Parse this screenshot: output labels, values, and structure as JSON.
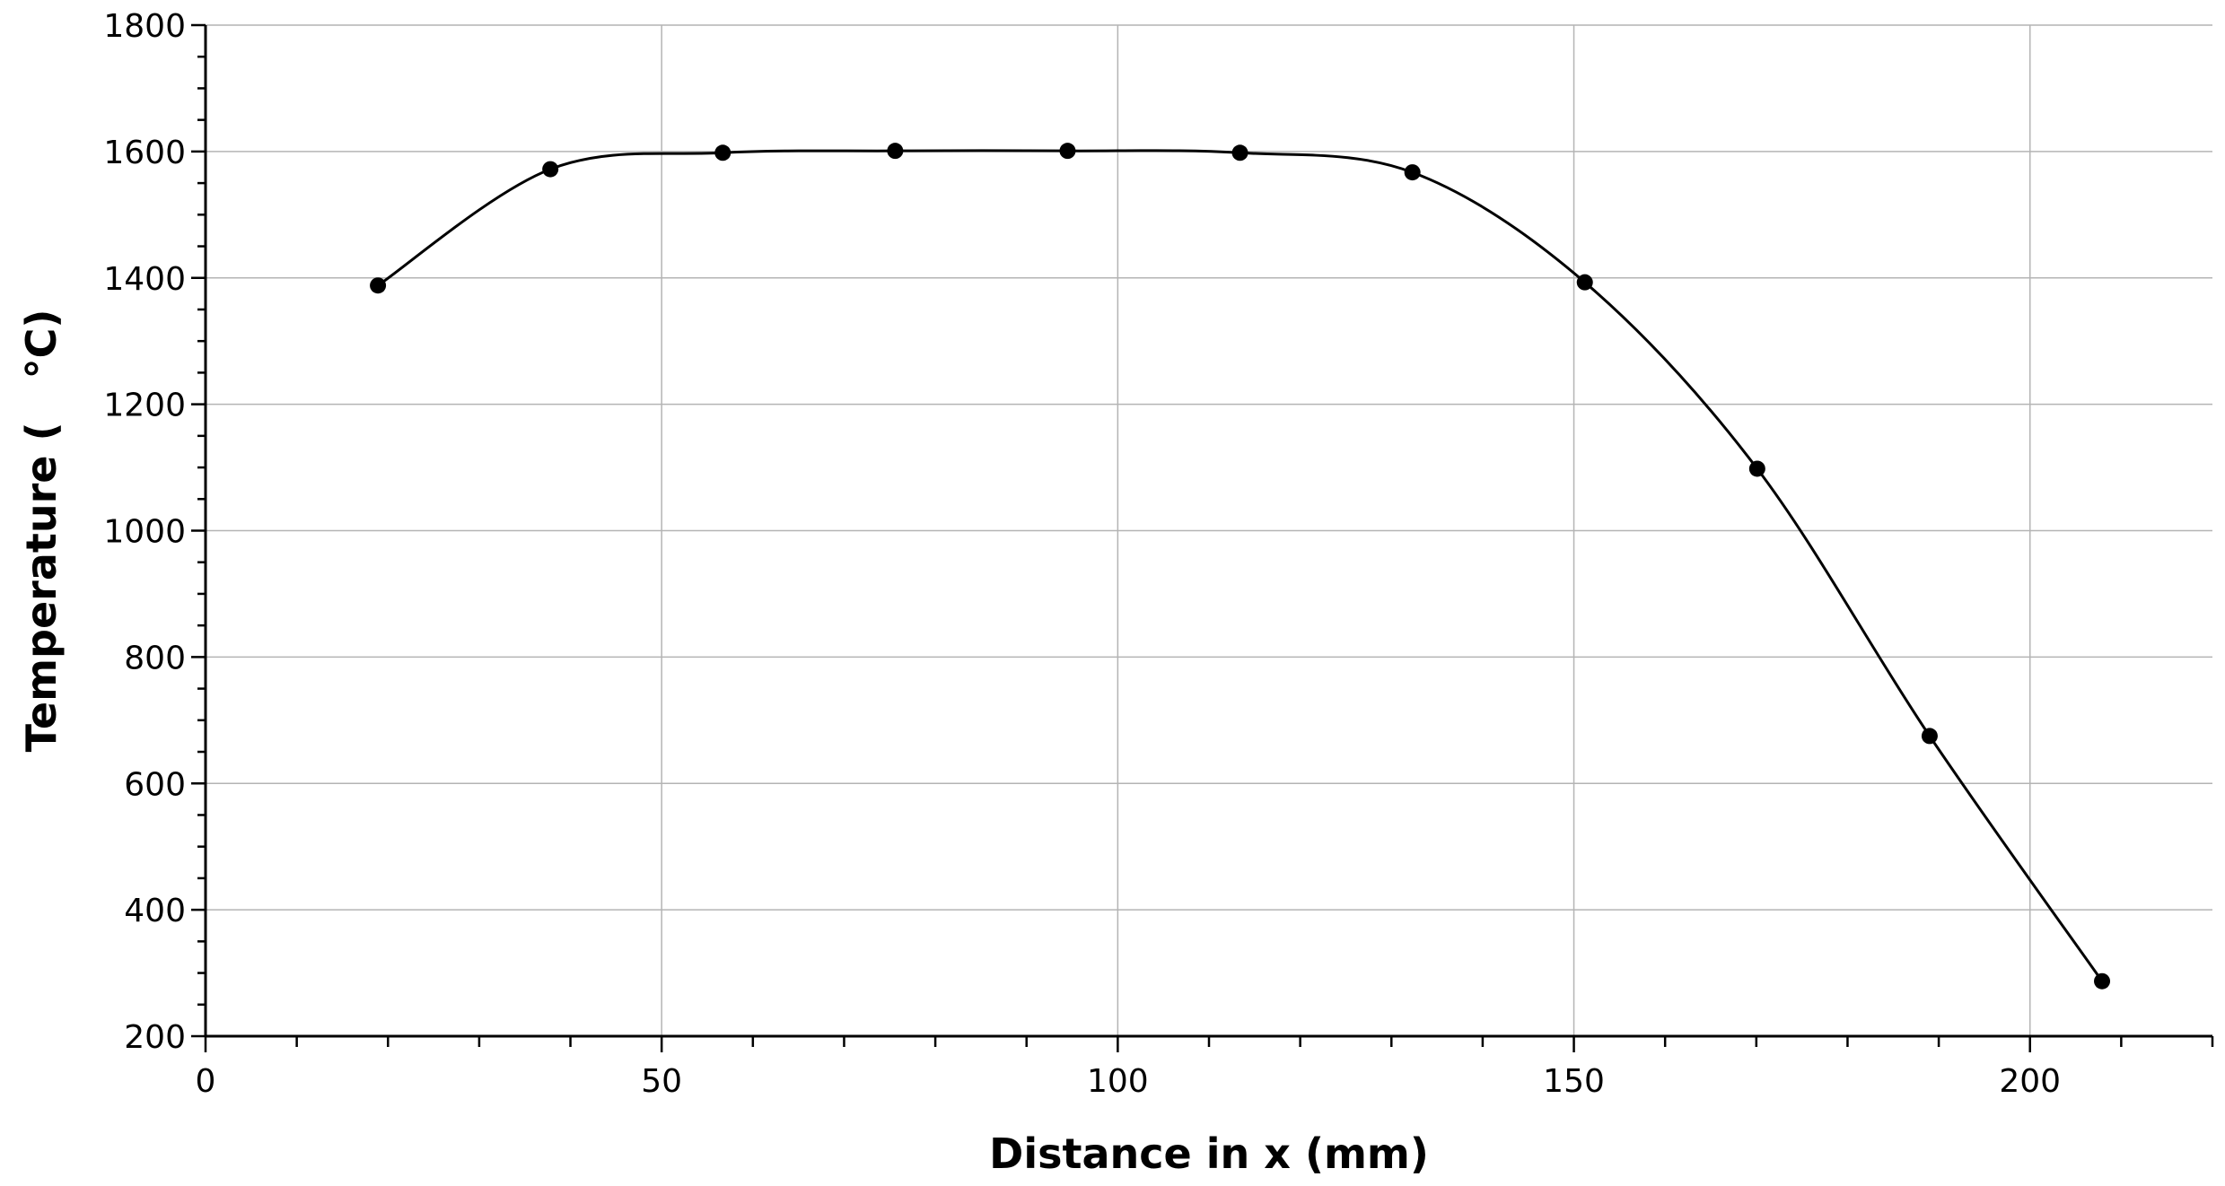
{
  "chart_data": {
    "type": "scatter",
    "xlabel": "Distance in x (mm)",
    "ylabel": "Temperature (   °C)",
    "xlim": [
      0,
      220
    ],
    "ylim": [
      200,
      1800
    ],
    "x_ticks": [
      "0",
      "50",
      "100",
      "150",
      "200"
    ],
    "y_ticks": [
      "200",
      "400",
      "600",
      "800",
      "1000",
      "1200",
      "1400",
      "1600",
      "1800"
    ],
    "grid": true,
    "series": [
      {
        "x": [
          18.9,
          37.8,
          56.7,
          75.6,
          94.5,
          113.4,
          132.3,
          151.2,
          170.1,
          189.0,
          207.9
        ],
        "y": [
          1388,
          1572,
          1598,
          1601,
          1601,
          1598,
          1567,
          1393,
          1098,
          675,
          287
        ],
        "line": "smooth",
        "markers": true
      }
    ]
  }
}
